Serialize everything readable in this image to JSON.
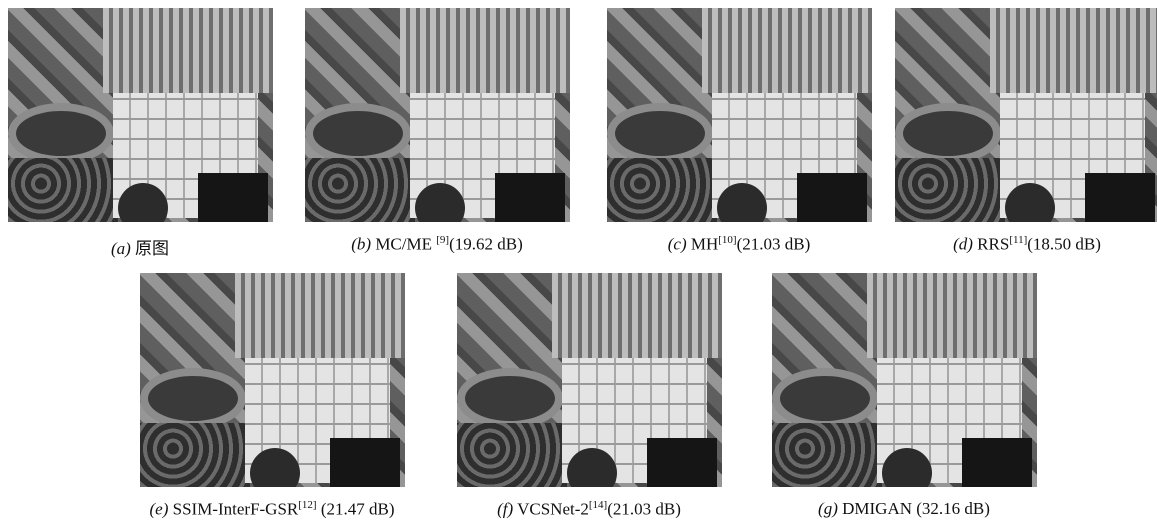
{
  "panels": [
    {
      "letter": "(a)",
      "name": "原图"
    },
    {
      "letter": "(b)",
      "name": "MC/ME ",
      "ref": "[9]",
      "result": "(19.62 dB)"
    },
    {
      "letter": "(c)",
      "name": "MH",
      "ref": "[10]",
      "result": "(21.03 dB)"
    },
    {
      "letter": "(d)",
      "name": "RRS",
      "ref": "[11]",
      "result": "(18.50 dB)"
    },
    {
      "letter": "(e)",
      "name": "SSIM-InterF-GSR",
      "ref": "[12]",
      "result": " (21.47 dB)"
    },
    {
      "letter": "(f)",
      "name": "VCSNet-2",
      "ref": "[14]",
      "result": "(21.03 dB)"
    },
    {
      "letter": "(g)",
      "name": "DMIGAN",
      "result": " (32.16 dB)"
    }
  ]
}
